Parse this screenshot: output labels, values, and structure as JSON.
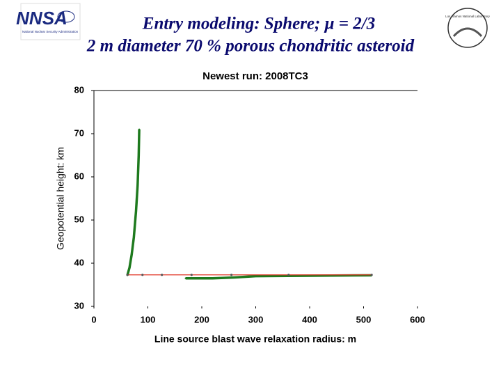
{
  "slide": {
    "title_line1": "Entry modeling: Sphere; μ = 2/3",
    "title_line2": "2 m diameter 70 % porous chondritic asteroid",
    "nnsa_logo": "NNSA",
    "nnsa_subtitle": "National Nuclear Security Administration",
    "lanl_logo": "Los Alamos National Laboratory"
  },
  "chart_data": {
    "type": "line",
    "title": "Newest run: 2008TC3",
    "x_label": "Line source blast wave relaxation radius: m",
    "y_label": "Geopotential height: km",
    "xlim": [
      0,
      600
    ],
    "xticks": [
      0,
      100,
      200,
      300,
      400,
      500,
      600
    ],
    "ylim": [
      30,
      80
    ],
    "yticks": [
      30,
      40,
      50,
      60,
      70,
      80
    ],
    "series": [
      {
        "color": "#1e7a1e",
        "x": [
          84,
          83,
          81,
          78,
          74,
          70,
          66,
          62,
          null,
          170,
          220,
          260,
          300,
          400,
          515
        ],
        "y": [
          71,
          65,
          58,
          52,
          46,
          42,
          39,
          37.2,
          null,
          36.5,
          36.5,
          36.7,
          37.0,
          37.1,
          37.2
        ]
      },
      {
        "color": "#e03020",
        "x": [
          62,
          90,
          126,
          181,
          255,
          361,
          515
        ],
        "y": [
          37.3,
          37.3,
          37.3,
          37.3,
          37.3,
          37.3,
          37.3
        ]
      }
    ]
  }
}
